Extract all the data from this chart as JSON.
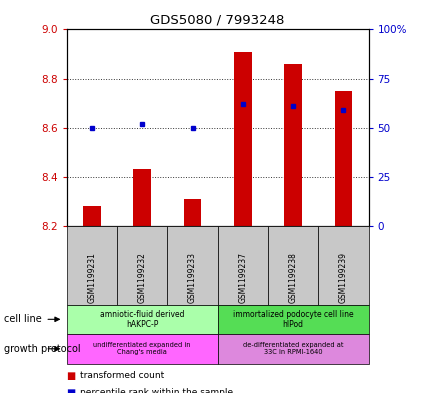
{
  "title": "GDS5080 / 7993248",
  "samples": [
    "GSM1199231",
    "GSM1199232",
    "GSM1199233",
    "GSM1199237",
    "GSM1199238",
    "GSM1199239"
  ],
  "transformed_count": [
    8.28,
    8.43,
    8.31,
    8.91,
    8.86,
    8.75
  ],
  "percentile_rank": [
    50,
    52,
    50,
    62,
    61,
    59
  ],
  "ylim_left": [
    8.2,
    9.0
  ],
  "ylim_right": [
    0,
    100
  ],
  "yticks_left": [
    8.2,
    8.4,
    8.6,
    8.8,
    9.0
  ],
  "yticks_right": [
    0,
    25,
    50,
    75,
    100
  ],
  "ytick_labels_right": [
    "0",
    "25",
    "50",
    "75",
    "100%"
  ],
  "bar_color": "#cc0000",
  "dot_color": "#0000cc",
  "bar_bottom": 8.2,
  "cell_line_labels": [
    "amniotic-fluid derived\nhAKPC-P",
    "immortalized podocyte cell line\nhIPod"
  ],
  "cell_line_color1": "#aaffaa",
  "cell_line_color2": "#55dd55",
  "growth_protocol_labels": [
    "undifferentiated expanded in\nChang's media",
    "de-differentiated expanded at\n33C in RPMI-1640"
  ],
  "growth_protocol_color1": "#ff66ff",
  "growth_protocol_color2": "#dd88dd",
  "left_axis_color": "#cc0000",
  "right_axis_color": "#0000cc",
  "gray_color": "#c8c8c8",
  "dotted_line_color": "#333333"
}
